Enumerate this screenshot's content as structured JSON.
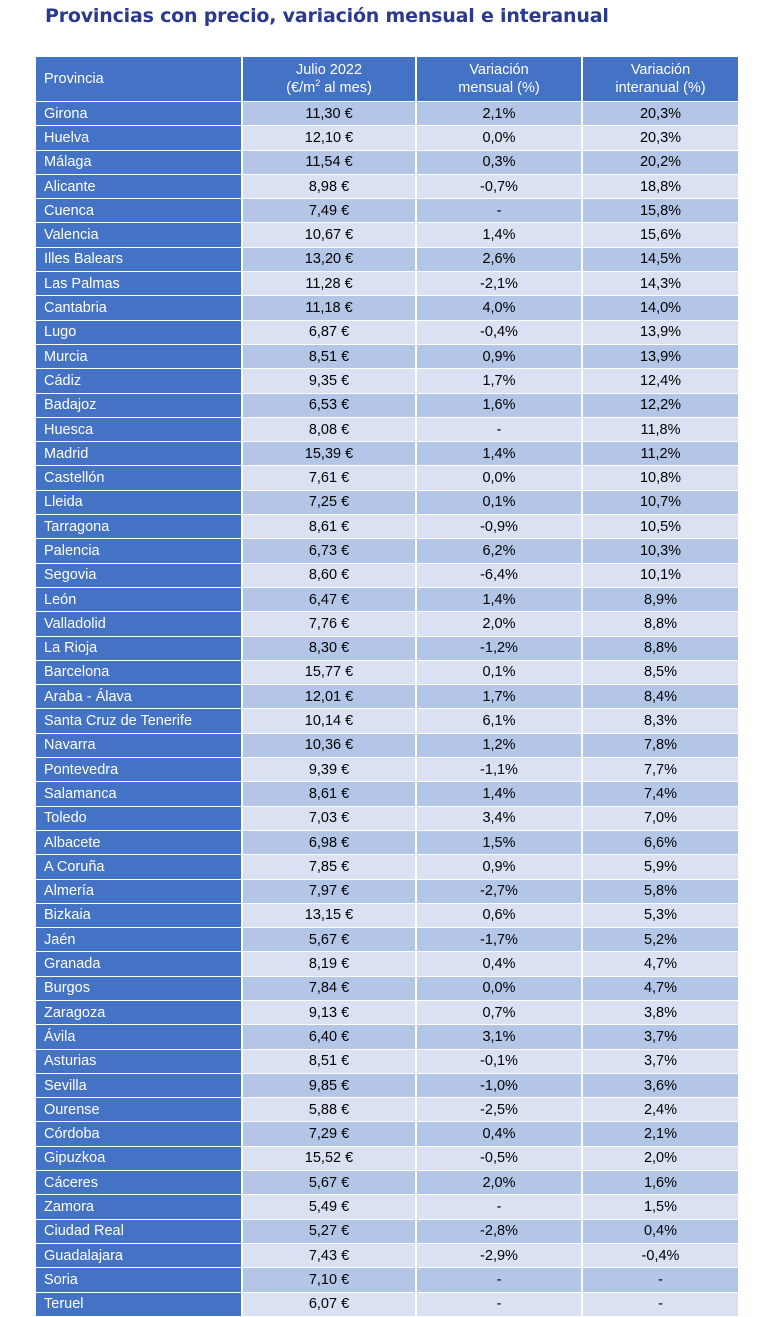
{
  "title": "Provincias con precio, variación mensual e interanual",
  "colors": {
    "title": "#2a3a8c",
    "header_bg": "#4472c4",
    "row_dark": "#b4c6e7",
    "row_light": "#d9e1f2",
    "negative": "#c00000"
  },
  "header": {
    "province": "Provincia",
    "price_line1": "Julio 2022",
    "price_line2a": "(€/m",
    "price_sup": "2",
    "price_line2b": " al mes)",
    "monthly_line1": "Variación",
    "monthly_line2": "mensual (%)",
    "yearly_line1": "Variación",
    "yearly_line2": "interanual (%)"
  },
  "rows": [
    [
      "Girona",
      "11,30 €",
      "2,1%",
      "20,3%"
    ],
    [
      "Huelva",
      "12,10 €",
      "0,0%",
      "20,3%"
    ],
    [
      "Málaga",
      "11,54 €",
      "0,3%",
      "20,2%"
    ],
    [
      "Alicante",
      "8,98 €",
      "-0,7%",
      "18,8%"
    ],
    [
      "Cuenca",
      "7,49 €",
      "-",
      "15,8%"
    ],
    [
      "Valencia",
      "10,67 €",
      "1,4%",
      "15,6%"
    ],
    [
      "Illes Balears",
      "13,20 €",
      "2,6%",
      "14,5%"
    ],
    [
      "Las Palmas",
      "11,28 €",
      "-2,1%",
      "14,3%"
    ],
    [
      "Cantabria",
      "11,18 €",
      "4,0%",
      "14,0%"
    ],
    [
      "Lugo",
      "6,87 €",
      "-0,4%",
      "13,9%"
    ],
    [
      "Murcia",
      "8,51 €",
      "0,9%",
      "13,9%"
    ],
    [
      "Cádiz",
      "9,35 €",
      "1,7%",
      "12,4%"
    ],
    [
      "Badajoz",
      "6,53 €",
      "1,6%",
      "12,2%"
    ],
    [
      "Huesca",
      "8,08 €",
      "-",
      "11,8%"
    ],
    [
      "Madrid",
      "15,39 €",
      "1,4%",
      "11,2%"
    ],
    [
      "Castellón",
      "7,61 €",
      "0,0%",
      "10,8%"
    ],
    [
      "Lleida",
      "7,25 €",
      "0,1%",
      "10,7%"
    ],
    [
      "Tarragona",
      "8,61 €",
      "-0,9%",
      "10,5%"
    ],
    [
      "Palencia",
      "6,73 €",
      "6,2%",
      "10,3%"
    ],
    [
      "Segovia",
      "8,60 €",
      "-6,4%",
      "10,1%"
    ],
    [
      "León",
      "6,47 €",
      "1,4%",
      "8,9%"
    ],
    [
      "Valladolid",
      "7,76 €",
      "2,0%",
      "8,8%"
    ],
    [
      "La Rioja",
      "8,30 €",
      "-1,2%",
      "8,8%"
    ],
    [
      "Barcelona",
      "15,77 €",
      "0,1%",
      "8,5%"
    ],
    [
      "Araba - Álava",
      "12,01 €",
      "1,7%",
      "8,4%"
    ],
    [
      "Santa Cruz de Tenerife",
      "10,14 €",
      "6,1%",
      "8,3%"
    ],
    [
      "Navarra",
      "10,36 €",
      "1,2%",
      "7,8%"
    ],
    [
      "Pontevedra",
      "9,39 €",
      "-1,1%",
      "7,7%"
    ],
    [
      "Salamanca",
      "8,61 €",
      "1,4%",
      "7,4%"
    ],
    [
      "Toledo",
      "7,03 €",
      "3,4%",
      "7,0%"
    ],
    [
      "Albacete",
      "6,98 €",
      "1,5%",
      "6,6%"
    ],
    [
      "A Coruña",
      "7,85 €",
      "0,9%",
      "5,9%"
    ],
    [
      "Almería",
      "7,97 €",
      "-2,7%",
      "5,8%"
    ],
    [
      "Bizkaia",
      "13,15 €",
      "0,6%",
      "5,3%"
    ],
    [
      "Jaén",
      "5,67 €",
      "-1,7%",
      "5,2%"
    ],
    [
      "Granada",
      "8,19 €",
      "0,4%",
      "4,7%"
    ],
    [
      "Burgos",
      "7,84 €",
      "0,0%",
      "4,7%"
    ],
    [
      "Zaragoza",
      "9,13 €",
      "0,7%",
      "3,8%"
    ],
    [
      "Ávila",
      "6,40 €",
      "3,1%",
      "3,7%"
    ],
    [
      "Asturias",
      "8,51 €",
      "-0,1%",
      "3,7%"
    ],
    [
      "Sevilla",
      "9,85 €",
      "-1,0%",
      "3,6%"
    ],
    [
      "Ourense",
      "5,88 €",
      "-2,5%",
      "2,4%"
    ],
    [
      "Córdoba",
      "7,29 €",
      "0,4%",
      "2,1%"
    ],
    [
      "Gipuzkoa",
      "15,52 €",
      "-0,5%",
      "2,0%"
    ],
    [
      "Cáceres",
      "5,67 €",
      "2,0%",
      "1,6%"
    ],
    [
      "Zamora",
      "5,49 €",
      "-",
      "1,5%"
    ],
    [
      "Ciudad Real",
      "5,27 €",
      "-2,8%",
      "0,4%"
    ],
    [
      "Guadalajara",
      "7,43 €",
      "-2,9%",
      "-0,4%"
    ],
    [
      "Soria",
      "7,10 €",
      "-",
      "-"
    ],
    [
      "Teruel",
      "6,07 €",
      "-",
      "-"
    ]
  ]
}
